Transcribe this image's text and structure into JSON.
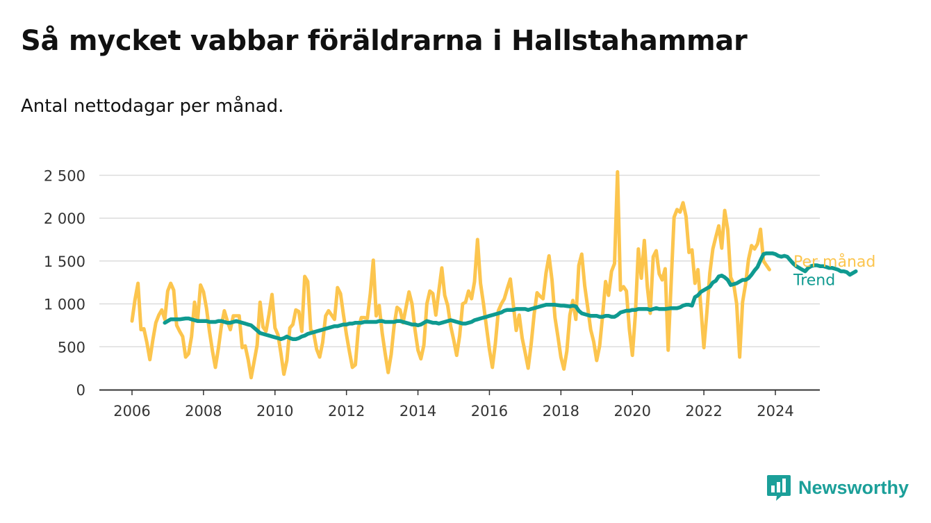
{
  "header": {
    "title": "Så mycket vabbar föräldrarna i Hallstahammar",
    "subtitle": "Antal nettodagar per månad."
  },
  "brand": {
    "name": "Newsworthy"
  },
  "colors": {
    "monthly": "#fcc54e",
    "trend": "#0f9a90",
    "grid": "#dcdcdc",
    "axis": "#333333",
    "brand": "#1b9f99"
  },
  "chart_data": {
    "type": "line",
    "title": "Så mycket vabbar föräldrarna i Hallstahammar",
    "subtitle": "Antal nettodagar per månad.",
    "xlabel": "",
    "ylabel": "",
    "ylim": [
      0,
      2600
    ],
    "xlim": [
      2005.2,
      2025.1
    ],
    "y_ticks": [
      0,
      500,
      1000,
      1500,
      2000,
      2500
    ],
    "y_tick_labels": [
      "0",
      "500",
      "1 000",
      "1 500",
      "2 000",
      "2 500"
    ],
    "x_ticks": [
      2006,
      2008,
      2010,
      2012,
      2014,
      2016,
      2018,
      2020,
      2022,
      2024
    ],
    "x_tick_labels": [
      "2006",
      "2008",
      "2010",
      "2012",
      "2014",
      "2016",
      "2018",
      "2020",
      "2022",
      "2024"
    ],
    "grid": "horizontal",
    "legend": "end-of-line labels",
    "series": [
      {
        "name": "Per månad",
        "start": "2006-01",
        "frequency": "monthly",
        "values": [
          800,
          1050,
          1240,
          700,
          710,
          550,
          350,
          580,
          780,
          870,
          930,
          820,
          1150,
          1240,
          1160,
          750,
          680,
          620,
          380,
          420,
          620,
          1020,
          800,
          1220,
          1140,
          950,
          680,
          450,
          260,
          480,
          740,
          920,
          800,
          700,
          860,
          860,
          860,
          490,
          510,
          350,
          140,
          330,
          520,
          1020,
          730,
          680,
          880,
          1110,
          720,
          640,
          420,
          180,
          340,
          720,
          760,
          930,
          910,
          680,
          1320,
          1260,
          700,
          660,
          470,
          380,
          550,
          860,
          920,
          870,
          820,
          1190,
          1120,
          870,
          640,
          440,
          260,
          290,
          720,
          840,
          840,
          830,
          1120,
          1510,
          860,
          980,
          660,
          420,
          200,
          410,
          750,
          960,
          930,
          780,
          960,
          1140,
          1000,
          700,
          460,
          360,
          520,
          1000,
          1150,
          1120,
          870,
          1150,
          1420,
          1100,
          980,
          740,
          580,
          400,
          630,
          1000,
          1020,
          1150,
          1060,
          1260,
          1750,
          1240,
          1000,
          730,
          470,
          260,
          540,
          920,
          1000,
          1060,
          1180,
          1290,
          1000,
          690,
          870,
          600,
          430,
          250,
          530,
          880,
          1130,
          1090,
          1060,
          1360,
          1560,
          1280,
          840,
          620,
          380,
          240,
          450,
          870,
          1040,
          820,
          1450,
          1580,
          1210,
          960,
          700,
          560,
          340,
          510,
          870,
          1260,
          1100,
          1380,
          1470,
          2540,
          1160,
          1200,
          1150,
          700,
          400,
          880,
          1640,
          1300,
          1740,
          1200,
          890,
          1550,
          1620,
          1350,
          1280,
          1410,
          460,
          1250,
          2010,
          2100,
          2070,
          2180,
          2020,
          1600,
          1630,
          1240,
          1400,
          960,
          490,
          900,
          1360,
          1640,
          1780,
          1910,
          1650,
          2090,
          1870,
          1310,
          1230,
          1000,
          380,
          1020,
          1230,
          1520,
          1680,
          1640,
          1700,
          1870,
          1500,
          1450,
          1400
        ]
      },
      {
        "name": "Trend",
        "start": "2006-12",
        "frequency": "monthly",
        "values": [
          780,
          800,
          820,
          820,
          820,
          820,
          825,
          830,
          830,
          820,
          810,
          800,
          800,
          800,
          800,
          790,
          790,
          790,
          800,
          800,
          790,
          780,
          780,
          790,
          800,
          790,
          780,
          770,
          760,
          750,
          720,
          690,
          660,
          650,
          640,
          630,
          620,
          610,
          600,
          590,
          600,
          620,
          600,
          590,
          590,
          600,
          620,
          630,
          650,
          660,
          670,
          680,
          690,
          700,
          710,
          720,
          730,
          740,
          740,
          750,
          760,
          760,
          770,
          770,
          780,
          780,
          780,
          790,
          790,
          790,
          790,
          790,
          800,
          800,
          790,
          790,
          790,
          790,
          800,
          800,
          790,
          780,
          770,
          760,
          760,
          750,
          760,
          780,
          800,
          790,
          780,
          780,
          770,
          780,
          790,
          800,
          810,
          800,
          790,
          780,
          770,
          770,
          780,
          790,
          810,
          820,
          830,
          840,
          850,
          860,
          870,
          880,
          890,
          900,
          920,
          930,
          930,
          930,
          940,
          940,
          940,
          940,
          930,
          940,
          950,
          960,
          970,
          980,
          990,
          990,
          990,
          990,
          985,
          980,
          980,
          975,
          970,
          980,
          970,
          920,
          890,
          880,
          870,
          860,
          860,
          860,
          850,
          850,
          860,
          860,
          850,
          850,
          870,
          900,
          910,
          920,
          920,
          930,
          930,
          940,
          940,
          940,
          940,
          930,
          940,
          950,
          940,
          940,
          940,
          945,
          950,
          950,
          950,
          960,
          980,
          990,
          990,
          980,
          1080,
          1100,
          1140,
          1160,
          1180,
          1200,
          1250,
          1270,
          1320,
          1330,
          1310,
          1280,
          1220,
          1230,
          1240,
          1260,
          1280,
          1280,
          1300,
          1340,
          1390,
          1430,
          1510,
          1580,
          1590,
          1590,
          1590,
          1580,
          1560,
          1550,
          1560,
          1550,
          1510,
          1470,
          1440,
          1420,
          1400,
          1380,
          1420,
          1440,
          1450,
          1450,
          1440,
          1440,
          1430,
          1420,
          1420,
          1410,
          1400,
          1380,
          1380,
          1370,
          1340,
          1360,
          1380
        ]
      }
    ]
  }
}
